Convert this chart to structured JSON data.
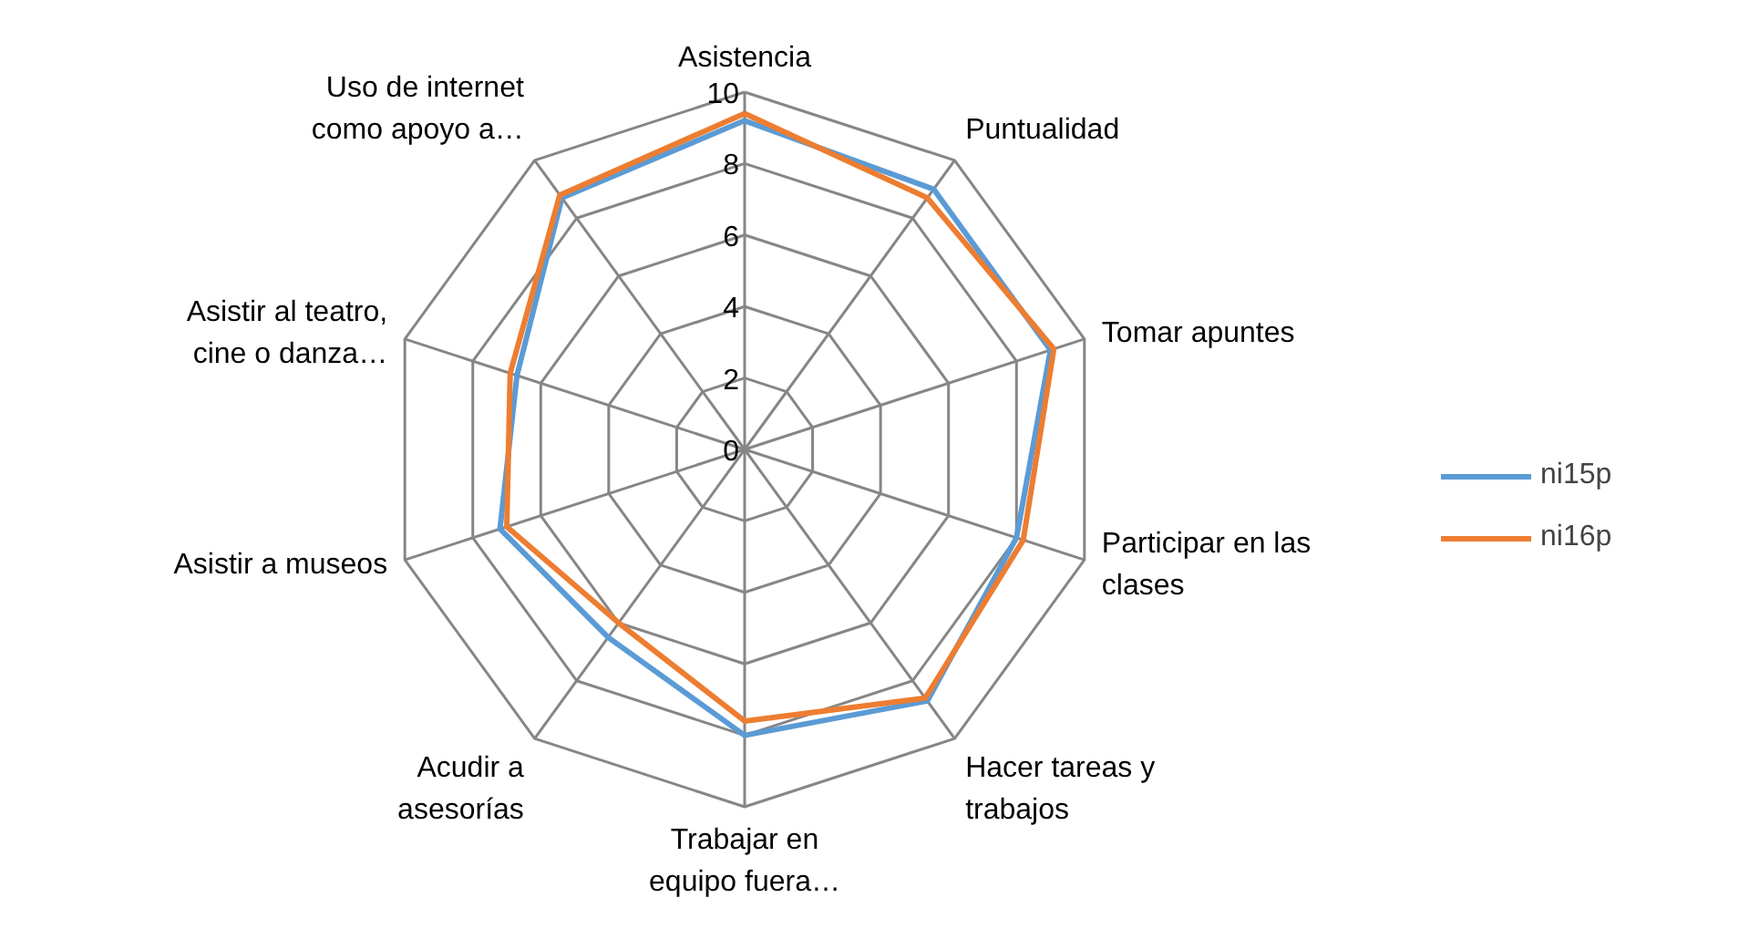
{
  "chart_data": {
    "type": "radar",
    "categories": [
      "Asistencia",
      "Puntualidad",
      "Tomar apuntes",
      "Participar en las\nclases",
      "Hacer tareas y\ntrabajos",
      "Trabajar en\nequipo fuera…",
      "Acudir a\nasesorías",
      "Asistir a museos",
      "Asistir al teatro,\ncine o danza…",
      "Uso de internet\ncomo apoyo a…"
    ],
    "series": [
      {
        "name": "ni15p",
        "color": "#5b9bd5",
        "values": [
          9.2,
          9.0,
          9.0,
          8.0,
          8.7,
          8.0,
          6.5,
          7.2,
          6.7,
          8.7
        ]
      },
      {
        "name": "ni16p",
        "color": "#ed7d31",
        "values": [
          9.4,
          8.7,
          9.1,
          8.2,
          8.6,
          7.6,
          6.0,
          7.0,
          6.9,
          8.8
        ]
      }
    ],
    "ylim": [
      0,
      10
    ],
    "yticks": [
      0,
      2,
      4,
      6,
      8,
      10
    ],
    "grid": true,
    "legend": "right"
  }
}
